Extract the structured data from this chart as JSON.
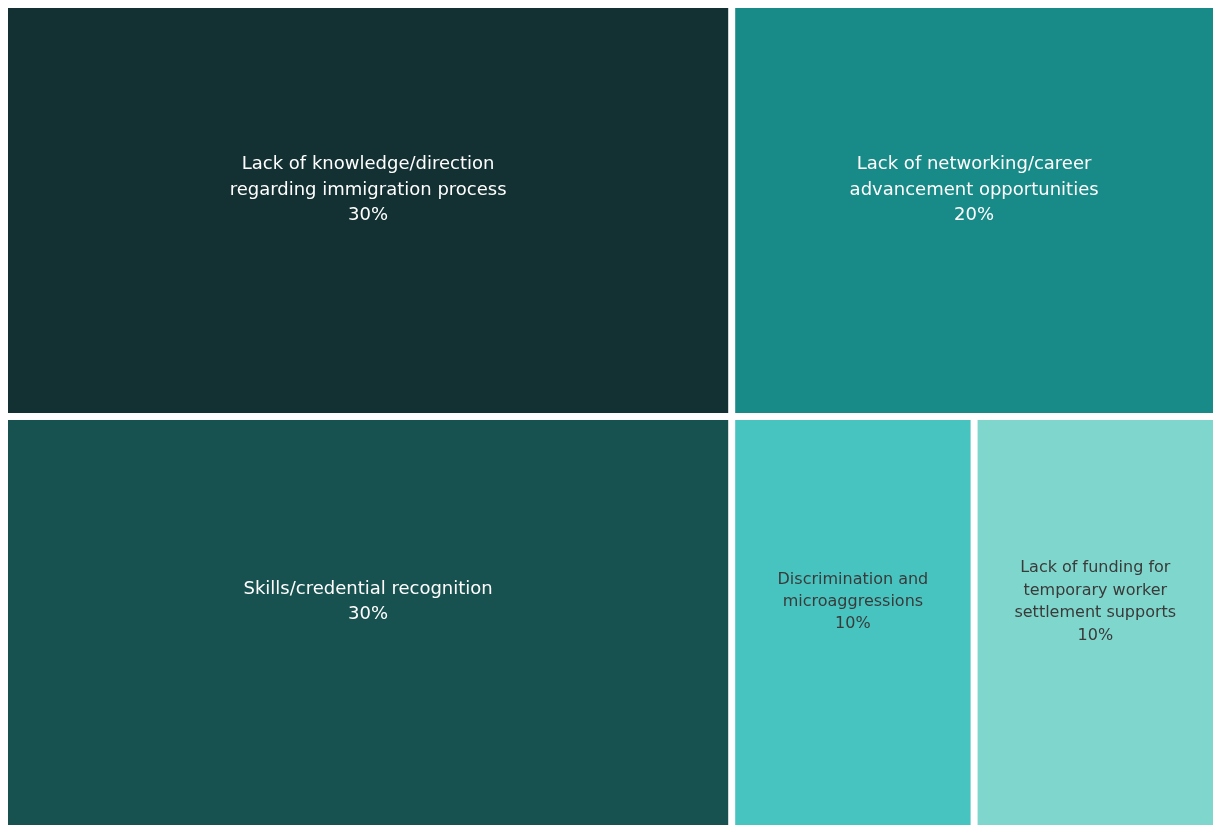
{
  "chart_data": {
    "type": "other",
    "categories": [
      "Lack of knowledge/direction regarding immigration process",
      "Skills/credential recognition",
      "Lack of networking/career advancement opportunities",
      "Discrimination and microaggressions",
      "Lack of funding for temporary worker settlement supports"
    ],
    "values": [
      30,
      30,
      20,
      10,
      10
    ],
    "value_labels": [
      "30%",
      "30%",
      "20%",
      "10%",
      "10%"
    ],
    "colors": [
      "#133033",
      "#175250",
      "#188a87",
      "#47c4c0",
      "#7fd6cc"
    ]
  }
}
